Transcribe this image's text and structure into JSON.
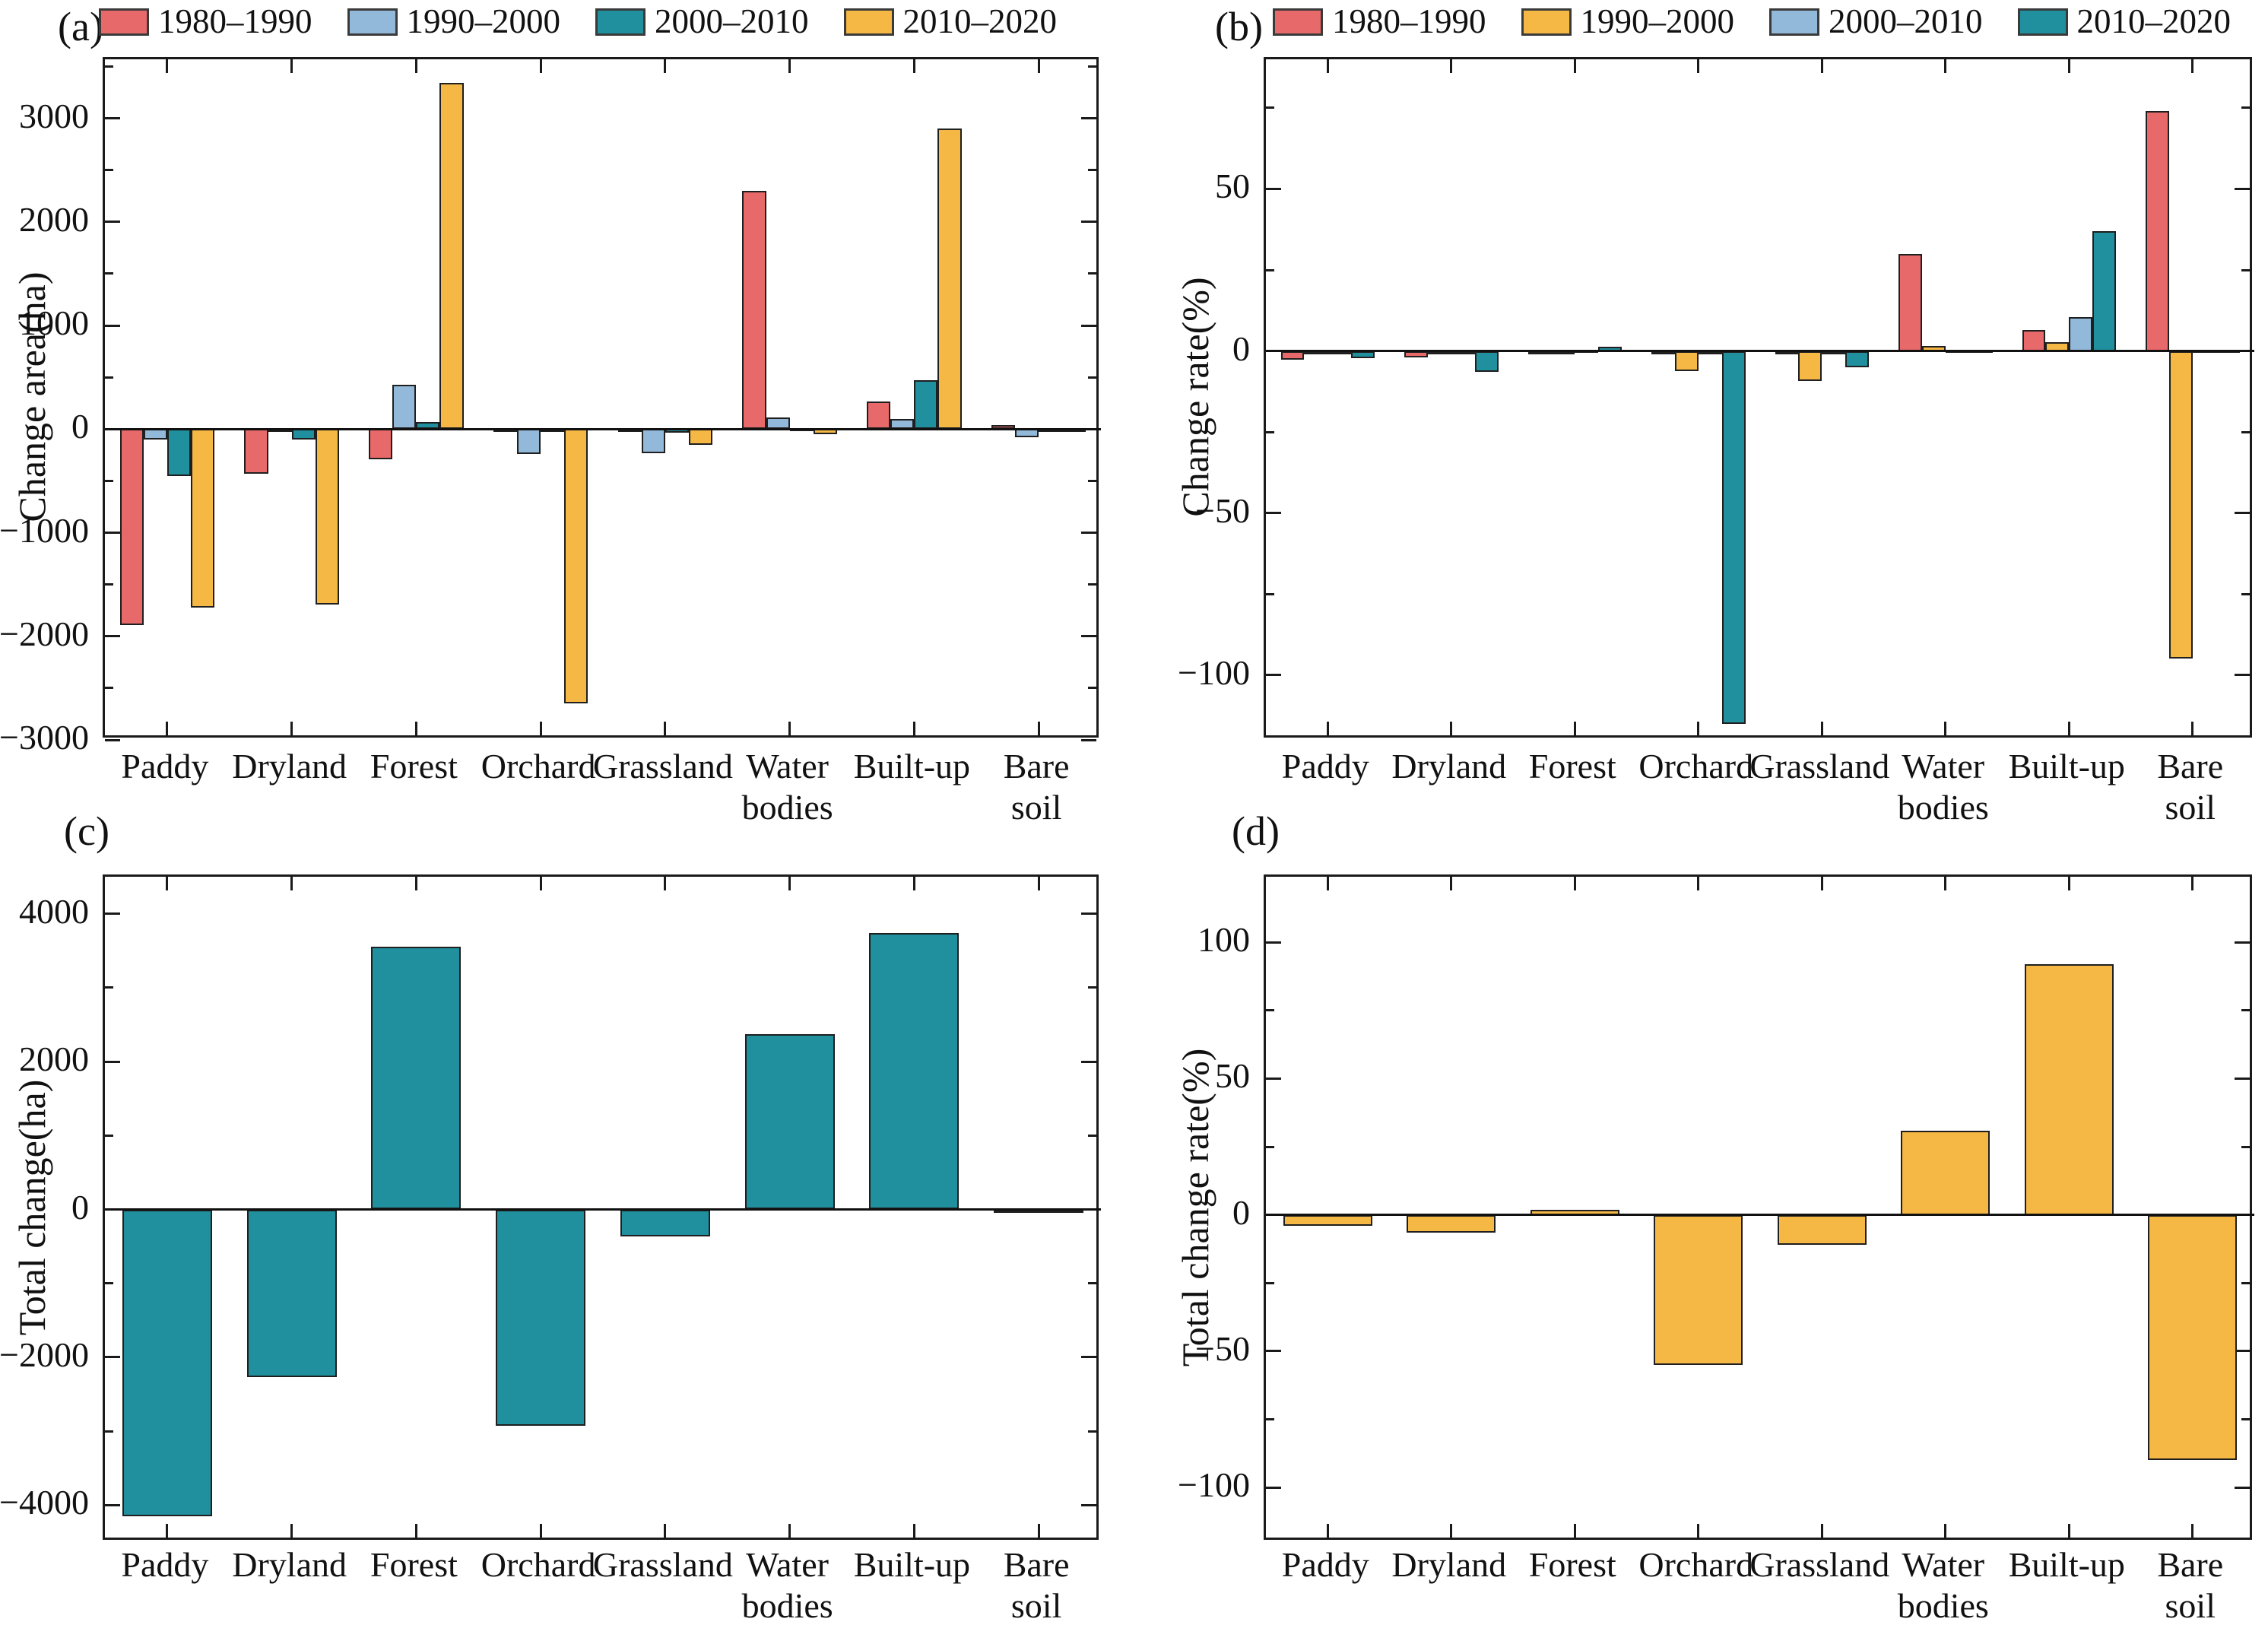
{
  "figure": {
    "panels": [
      {
        "letter": "(a)"
      },
      {
        "letter": "(b)"
      },
      {
        "letter": "(c)"
      },
      {
        "letter": "(d)"
      }
    ]
  },
  "colors": {
    "red": "#e8696a",
    "blue": "#92b9d9",
    "teal": "#20909e",
    "yellow": "#f6b844",
    "axis": "#1a1a1a"
  },
  "chart_data": [
    {
      "type": "bar",
      "panel": "(a)",
      "ylabel": "Change area(ha)",
      "categories": [
        "Paddy",
        "Dryland",
        "Forest",
        "Orchard",
        "Grassland",
        "Water bodies",
        "Built-up",
        "Bare soil"
      ],
      "categories_lines": [
        [
          "Paddy"
        ],
        [
          "Dryland"
        ],
        [
          "Forest"
        ],
        [
          "Orchard"
        ],
        [
          "Grassland"
        ],
        [
          "Water",
          "bodies"
        ],
        [
          "Built-up"
        ],
        [
          "Bare",
          "soil"
        ]
      ],
      "series": [
        {
          "name": "1980–1990",
          "color": "#e8696a",
          "values": [
            -1890,
            -430,
            -290,
            -20,
            -15,
            2300,
            265,
            40
          ]
        },
        {
          "name": "1990–2000",
          "color": "#92b9d9",
          "values": [
            -100,
            -25,
            430,
            -240,
            -230,
            110,
            100,
            -80
          ]
        },
        {
          "name": "2000–2010",
          "color": "#20909e",
          "values": [
            -450,
            -100,
            65,
            -30,
            -35,
            10,
            475,
            -10
          ]
        },
        {
          "name": "2010–2020",
          "color": "#f6b844",
          "values": [
            -1720,
            -1690,
            3340,
            -2650,
            -150,
            -50,
            2900,
            -10
          ]
        }
      ],
      "ylim": [
        -3000,
        3570
      ],
      "yticks": [
        {
          "label": "3000",
          "value": 3000
        },
        {
          "label": "2000",
          "value": 2000
        },
        {
          "label": "1000",
          "value": 1000
        },
        {
          "label": "0",
          "value": 0
        },
        {
          "label": "−1000",
          "value": -1000
        },
        {
          "label": "−2000",
          "value": -2000
        },
        {
          "label": "−3000",
          "value": -3000
        }
      ],
      "yminor_step": 500,
      "legend": true,
      "legend_position": "top"
    },
    {
      "type": "bar",
      "panel": "(b)",
      "ylabel": "Change rate(%)",
      "categories": [
        "Paddy",
        "Dryland",
        "Forest",
        "Orchard",
        "Grassland",
        "Water bodies",
        "Built-up",
        "Bare soil"
      ],
      "categories_lines": [
        [
          "Paddy"
        ],
        [
          "Dryland"
        ],
        [
          "Forest"
        ],
        [
          "Orchard"
        ],
        [
          "Grassland"
        ],
        [
          "Water",
          "bodies"
        ],
        [
          "Built-up"
        ],
        [
          "Bare",
          "soil"
        ]
      ],
      "series": [
        {
          "name": "1980–1990",
          "color": "#e8696a",
          "values": [
            -2.8,
            -1.9,
            -0.5,
            -0.3,
            -0.3,
            30,
            6.5,
            74
          ]
        },
        {
          "name": "1990–2000",
          "color": "#f6b844",
          "values": [
            -0.5,
            -0.5,
            -0.2,
            -6.3,
            -9.3,
            1.5,
            2.7,
            -95
          ]
        },
        {
          "name": "2000–2010",
          "color": "#92b9d9",
          "values": [
            -0.5,
            -0.3,
            0.3,
            -0.5,
            -0.5,
            0.3,
            10.5,
            0.3
          ]
        },
        {
          "name": "2010–2020",
          "color": "#20909e",
          "values": [
            -2.3,
            -6.5,
            1.4,
            -115,
            -5,
            0.3,
            37,
            0.3
          ]
        }
      ],
      "ylim": [
        -120,
        90
      ],
      "yticks": [
        {
          "label": "50",
          "value": 50
        },
        {
          "label": "0",
          "value": 0
        },
        {
          "label": "−50",
          "value": -50
        },
        {
          "label": "−100",
          "value": -100
        }
      ],
      "yminor_step": 25,
      "legend": true,
      "legend_position": "top"
    },
    {
      "type": "bar",
      "panel": "(c)",
      "ylabel": "Total change(ha)",
      "categories": [
        "Paddy",
        "Dryland",
        "Forest",
        "Orchard",
        "Grassland",
        "Water bodies",
        "Built-up",
        "Bare soil"
      ],
      "categories_lines": [
        [
          "Paddy"
        ],
        [
          "Dryland"
        ],
        [
          "Forest"
        ],
        [
          "Orchard"
        ],
        [
          "Grassland"
        ],
        [
          "Water",
          "bodies"
        ],
        [
          "Built-up"
        ],
        [
          "Bare",
          "soil"
        ]
      ],
      "series": [
        {
          "name": "",
          "color": "#20909e",
          "values": [
            -4150,
            -2270,
            3550,
            -2930,
            -370,
            2370,
            3740,
            -40
          ]
        }
      ],
      "ylim": [
        -4500,
        4500
      ],
      "yticks": [
        {
          "label": "4000",
          "value": 4000
        },
        {
          "label": "2000",
          "value": 2000
        },
        {
          "label": "0",
          "value": 0
        },
        {
          "label": "−2000",
          "value": -2000
        },
        {
          "label": "−4000",
          "value": -4000
        }
      ],
      "yminor_step": 1000,
      "legend": false
    },
    {
      "type": "bar",
      "panel": "(d)",
      "ylabel": "Total change rate(%)",
      "categories": [
        "Paddy",
        "Dryland",
        "Forest",
        "Orchard",
        "Grassland",
        "Water bodies",
        "Built-up",
        "Bare soil"
      ],
      "categories_lines": [
        [
          "Paddy"
        ],
        [
          "Dryland"
        ],
        [
          "Forest"
        ],
        [
          "Orchard"
        ],
        [
          "Grassland"
        ],
        [
          "Water",
          "bodies"
        ],
        [
          "Built-up"
        ],
        [
          "Bare",
          "soil"
        ]
      ],
      "series": [
        {
          "name": "",
          "color": "#f6b844",
          "values": [
            -4,
            -6.5,
            2,
            -55,
            -11,
            31,
            92,
            -90
          ]
        }
      ],
      "ylim": [
        -120,
        124
      ],
      "yticks": [
        {
          "label": "100",
          "value": 100
        },
        {
          "label": "50",
          "value": 50
        },
        {
          "label": "0",
          "value": 0
        },
        {
          "label": "−50",
          "value": -50
        },
        {
          "label": "−100",
          "value": -100
        }
      ],
      "yminor_step": 25,
      "legend": false
    }
  ]
}
